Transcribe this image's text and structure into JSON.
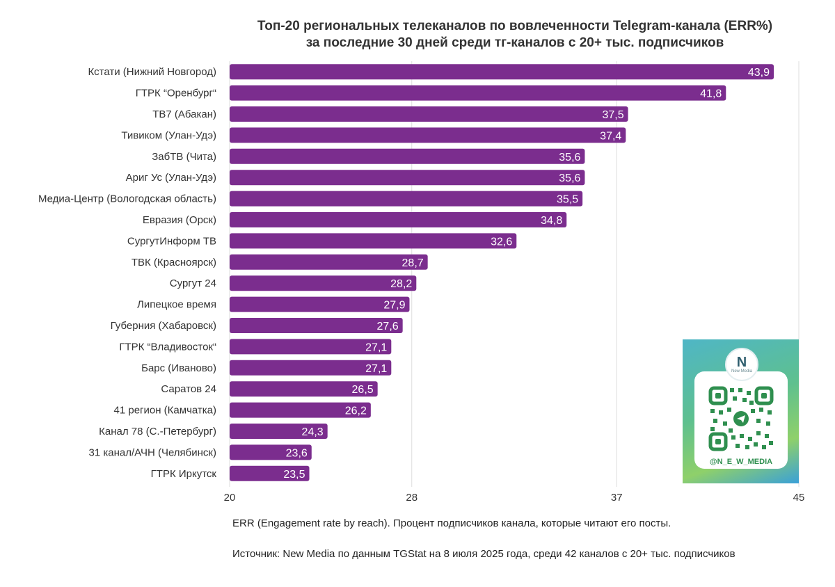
{
  "chart_data": {
    "type": "bar",
    "orientation": "horizontal",
    "title": "Топ-20 региональных телеканалов по вовлеченности Telegram-канала (ERR%)",
    "subtitle": "за последние 30 дней среди тг-каналов с 20+ тыс. подписчиков",
    "categories": [
      "Кстати (Нижний Новгород)",
      "ГТРК “Оренбург“",
      "ТВ7 (Абакан)",
      "Тивиком (Улан-Удэ)",
      "ЗабТВ (Чита)",
      "Ариг Ус (Улан-Удэ)",
      "Медиа-Центр (Вологодская область)",
      "Евразия (Орск)",
      "СургутИнформ ТВ",
      "ТВК (Красноярск)",
      "Сургут 24",
      "Липецкое время",
      "Губерния (Хабаровск)",
      "ГТРК “Владивосток“",
      "Барс (Иваново)",
      "Саратов 24",
      "41 регион (Камчатка)",
      "Канал 78 (С.-Петербург)",
      "31 канал/АЧН (Челябинск)",
      "ГТРК Иркутск"
    ],
    "values": [
      43.9,
      41.8,
      37.5,
      37.4,
      35.6,
      35.6,
      35.5,
      34.8,
      32.6,
      28.7,
      28.2,
      27.9,
      27.6,
      27.1,
      27.1,
      26.5,
      26.2,
      24.3,
      23.6,
      23.5
    ],
    "value_labels": [
      "43,9",
      "41,8",
      "37,5",
      "37,4",
      "35,6",
      "35,6",
      "35,5",
      "34,8",
      "32,6",
      "28,7",
      "28,2",
      "27,9",
      "27,6",
      "27,1",
      "27,1",
      "26,5",
      "26,2",
      "24,3",
      "23,6",
      "23,5"
    ],
    "xlim": [
      20,
      45
    ],
    "xticks": [
      20,
      28,
      37,
      45
    ],
    "xtick_labels": [
      "20",
      "28",
      "37",
      "45"
    ],
    "grid": "vertical",
    "bar_color": "#7b2d8e"
  },
  "notes": {
    "definition": "ERR (Engagement rate by reach). Процент подписчиков канала, которые читают его посты.",
    "source": "Источник: New Media по данным TGStat на 8 июля 2025 года, среди 42 каналов с 20+ тыс. подписчиков"
  },
  "qr_card": {
    "logo_mark": "N",
    "logo_text": "New Media",
    "handle": "@N_E_W_MEDIA",
    "qr_icon": "qr-code-icon"
  }
}
